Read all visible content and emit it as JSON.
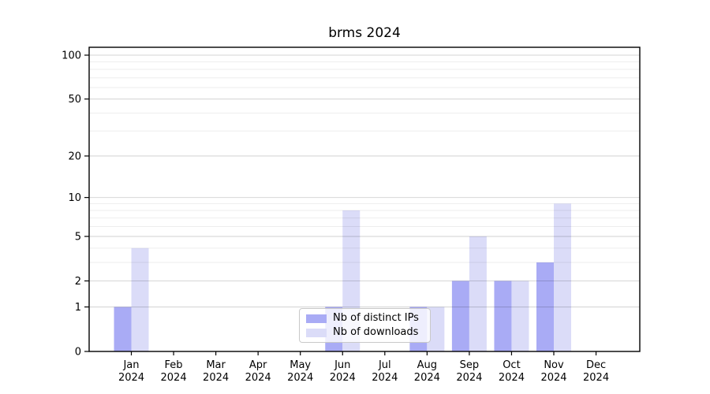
{
  "title": "brms 2024",
  "chart_data": {
    "type": "bar",
    "title": "brms 2024",
    "xlabel": "",
    "ylabel": "",
    "yscale": "linear in log10(value+1), 0 at baseline",
    "categories": [
      "Jan",
      "Feb",
      "Mar",
      "Apr",
      "May",
      "Jun",
      "Jul",
      "Aug",
      "Sep",
      "Oct",
      "Nov",
      "Dec"
    ],
    "year": "2024",
    "series": [
      {
        "name": "Nb of distinct IPs",
        "key": "distinct-ips",
        "color": "#a9abf5",
        "values": [
          1,
          0,
          0,
          0,
          0,
          1,
          0,
          1,
          2,
          2,
          3,
          0
        ]
      },
      {
        "name": "Nb of downloads",
        "key": "downloads",
        "color": "#dbdcf8",
        "values": [
          4,
          0,
          0,
          0,
          0,
          8,
          0,
          1,
          5,
          2,
          9,
          0
        ]
      }
    ],
    "y_major_ticks": [
      100,
      50,
      20,
      10,
      5,
      2,
      1,
      0
    ],
    "y_minor_gridlines": [
      90,
      80,
      70,
      60,
      40,
      30,
      9,
      8,
      7,
      6,
      4,
      3
    ],
    "ylim": [
      0,
      113
    ],
    "grid": true,
    "legend_position": "lower center inside plot"
  },
  "legend": {
    "items": [
      {
        "label": "Nb of distinct IPs",
        "color": "#a9abf5"
      },
      {
        "label": "Nb of downloads",
        "color": "#dbdcf8"
      }
    ]
  },
  "colors": {
    "bar_distinct_ips": "#a9abf5",
    "bar_downloads": "#dbdcf8",
    "grid_major": "rgba(0,0,0,0.16)",
    "grid_minor": "rgba(0,0,0,0.07)",
    "axis": "#000000",
    "text": "#000000",
    "background": "#ffffff"
  }
}
